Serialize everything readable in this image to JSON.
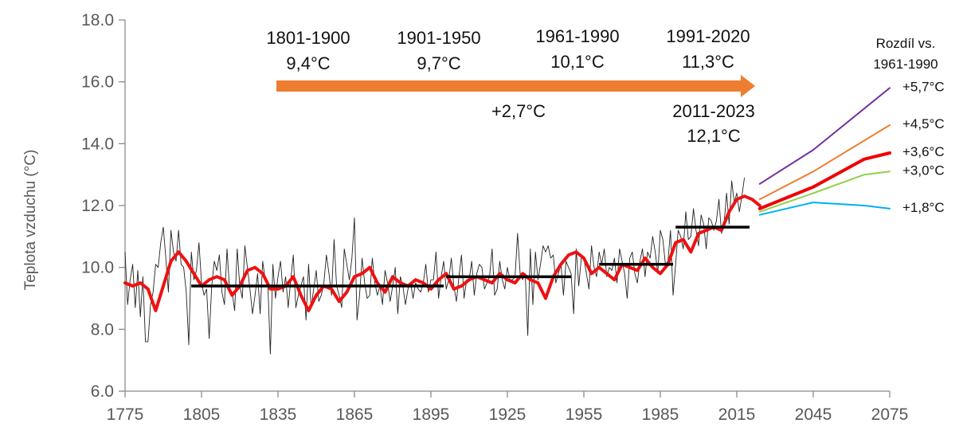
{
  "chart_data": {
    "type": "line",
    "ylabel": "Teplota vzduchu (°C)",
    "ylim": [
      6.0,
      18.0
    ],
    "xlim": [
      1775,
      2075
    ],
    "y_ticks": [
      "6.0",
      "8.0",
      "10.0",
      "12.0",
      "14.0",
      "16.0",
      "18.0"
    ],
    "x_ticks": [
      "1775",
      "1805",
      "1835",
      "1865",
      "1895",
      "1925",
      "1955",
      "1985",
      "2015",
      "2045",
      "2075"
    ],
    "annual_series": {
      "start_year": 1775,
      "values": [
        10.5,
        8.8,
        9.6,
        10.1,
        8.7,
        9.9,
        8.4,
        9.7,
        7.6,
        7.6,
        8.8,
        9.2,
        10.1,
        10.0,
        10.8,
        11.3,
        10.3,
        9.2,
        11.2,
        10.5,
        10.2,
        11.2,
        10.1,
        10.0,
        9.2,
        7.5,
        10.5,
        9.6,
        9.9,
        10.8,
        9.5,
        9.1,
        9.3,
        7.7,
        9.4,
        10.2,
        9.9,
        10.4,
        9.2,
        8.8,
        10.6,
        9.3,
        9.2,
        8.6,
        10.6,
        9.4,
        9.0,
        10.7,
        10.0,
        9.3,
        8.5,
        9.1,
        9.8,
        8.5,
        10.2,
        9.6,
        9.5,
        7.2,
        10.1,
        9.0,
        9.7,
        10.2,
        9.2,
        9.7,
        8.7,
        9.6,
        10.4,
        8.7,
        9.1,
        9.4,
        9.7,
        8.3,
        10.1,
        8.7,
        9.3,
        9.9,
        8.9,
        9.1,
        9.5,
        10.4,
        9.8,
        9.1,
        10.9,
        9.4,
        9.1,
        8.7,
        10.6,
        10.1,
        9.6,
        10.3,
        11.6,
        8.3,
        9.1,
        10.3,
        9.5,
        9.0,
        9.1,
        10.3,
        9.5,
        9.1,
        9.4,
        8.8,
        9.9,
        9.5,
        8.9,
        9.4,
        10.0,
        8.5,
        9.7,
        9.4,
        8.8,
        9.3,
        9.5,
        9.0,
        9.5,
        9.3,
        9.2,
        9.5,
        10.1,
        9.2,
        9.6,
        9.6,
        10.5,
        9.0,
        9.7,
        10.2,
        9.3,
        9.6,
        10.3,
        9.4,
        8.9,
        9.7,
        10.4,
        9.0,
        9.6,
        9.6,
        10.2,
        9.1,
        9.8,
        10.1,
        10.0,
        9.3,
        9.5,
        9.7,
        10.6,
        9.1,
        9.3,
        10.2,
        9.6,
        9.3,
        10.0,
        9.6,
        9.6,
        9.7,
        11.1,
        9.8,
        9.6,
        9.8,
        7.8,
        10.6,
        8.8,
        10.5,
        9.6,
        10.1,
        10.7,
        10.5,
        10.7,
        10.3,
        10.4,
        9.5,
        9.8,
        10.1,
        9.1,
        10.2,
        10.0,
        9.8,
        8.5,
        10.6,
        9.4,
        10.3,
        10.3,
        9.8,
        9.3,
        10.7,
        10.0,
        9.7,
        10.5,
        10.1,
        10.6,
        9.7,
        10.0,
        9.9,
        10.3,
        9.5,
        10.6,
        10.2,
        9.8,
        9.0,
        10.3,
        10.5,
        9.8,
        9.5,
        10.2,
        10.6,
        9.7,
        10.5,
        10.3,
        11.0,
        10.5,
        9.8,
        11.2,
        10.9,
        10.1,
        10.2,
        11.2,
        9.1,
        10.1,
        11.2,
        11.0,
        10.6,
        11.8,
        10.9,
        11.0,
        11.9,
        11.2,
        10.7,
        11.7,
        11.4,
        10.6,
        11.6,
        11.5,
        11.2,
        11.5,
        12.2,
        11.1,
        11.4,
        12.4,
        11.4,
        12.8,
        12.1,
        12.4,
        11.8,
        12.3,
        12.9
      ]
    },
    "smoothed_series": {
      "x": [
        1775,
        1778,
        1781,
        1784,
        1787,
        1790,
        1793,
        1796,
        1799,
        1802,
        1805,
        1808,
        1811,
        1814,
        1817,
        1820,
        1823,
        1826,
        1829,
        1832,
        1835,
        1838,
        1841,
        1844,
        1847,
        1850,
        1853,
        1856,
        1859,
        1862,
        1865,
        1868,
        1871,
        1874,
        1877,
        1880,
        1883,
        1886,
        1889,
        1892,
        1895,
        1898,
        1901,
        1904,
        1907,
        1910,
        1913,
        1916,
        1919,
        1922,
        1925,
        1928,
        1931,
        1934,
        1937,
        1940,
        1943,
        1946,
        1949,
        1952,
        1955,
        1958,
        1961,
        1964,
        1967,
        1970,
        1973,
        1976,
        1979,
        1982,
        1985,
        1988,
        1991,
        1994,
        1997,
        2000,
        2003,
        2006,
        2009,
        2012,
        2015,
        2018,
        2021,
        2024
      ],
      "values": [
        9.5,
        9.4,
        9.5,
        9.3,
        8.6,
        9.4,
        10.2,
        10.5,
        10.2,
        9.8,
        9.4,
        9.6,
        9.7,
        9.6,
        9.1,
        9.4,
        9.9,
        10.0,
        9.8,
        9.3,
        9.3,
        9.4,
        9.7,
        9.1,
        8.6,
        9.1,
        9.4,
        9.3,
        8.9,
        9.2,
        9.7,
        9.8,
        10.0,
        9.5,
        9.2,
        9.7,
        9.5,
        9.4,
        9.6,
        9.5,
        9.3,
        9.6,
        9.8,
        9.3,
        9.4,
        9.6,
        9.7,
        9.6,
        9.5,
        9.8,
        9.6,
        9.5,
        9.8,
        9.6,
        9.5,
        9.0,
        9.7,
        10.1,
        10.4,
        10.5,
        10.3,
        9.8,
        10.0,
        9.8,
        9.6,
        10.1,
        10.0,
        9.9,
        10.3,
        10.0,
        9.8,
        10.1,
        10.8,
        10.9,
        10.5,
        11.1,
        11.2,
        11.3,
        11.2,
        11.8,
        12.2,
        12.3,
        12.2,
        12.0
      ]
    },
    "period_means": [
      {
        "x": [
          1801,
          1900
        ],
        "y": 9.4
      },
      {
        "x": [
          1901,
          1950
        ],
        "y": 9.7
      },
      {
        "x": [
          1961,
          1990
        ],
        "y": 10.1
      },
      {
        "x": [
          1991,
          2020
        ],
        "y": 11.3
      }
    ],
    "projections": [
      {
        "color": "#7030a0",
        "x": [
          2024,
          2045,
          2075
        ],
        "y": [
          12.7,
          13.8,
          15.8
        ],
        "label": "+5,7°C"
      },
      {
        "color": "#ed7d31",
        "x": [
          2024,
          2045,
          2075
        ],
        "y": [
          12.2,
          13.1,
          14.6
        ],
        "label": "+4,5°C"
      },
      {
        "color": "#ee0000",
        "x": [
          2024,
          2045,
          2065,
          2075
        ],
        "y": [
          11.9,
          12.6,
          13.5,
          13.7
        ],
        "label": "+3,6°C",
        "width": 4
      },
      {
        "color": "#92d050",
        "x": [
          2024,
          2045,
          2065,
          2075
        ],
        "y": [
          11.8,
          12.4,
          13.0,
          13.1
        ],
        "label": "+3,0°C"
      },
      {
        "color": "#00b0f0",
        "x": [
          2024,
          2045,
          2065,
          2075
        ],
        "y": [
          11.7,
          12.1,
          12.0,
          11.9
        ],
        "label": "+1,8°C"
      }
    ],
    "projection_header": [
      "Rozdíl vs.",
      "1961-1990"
    ],
    "period_labels": [
      {
        "period": "1801-1900",
        "temp": "9,4°C"
      },
      {
        "period": "1901-1950",
        "temp": "9,7°C"
      },
      {
        "period": "1961-1990",
        "temp": "10,1°C"
      },
      {
        "period": "1991-2020",
        "temp": "11,3°C"
      }
    ],
    "arrow_label": "+2,7°C",
    "recent_label": {
      "period": "2011-2023",
      "temp": "12,1°C"
    },
    "colors": {
      "annual": "#222222",
      "smoothed": "#ee1111",
      "period_mean": "#000000",
      "arrow": "#ed7d31",
      "axis": "#8c8c8c",
      "tick_text": "#595959"
    }
  }
}
